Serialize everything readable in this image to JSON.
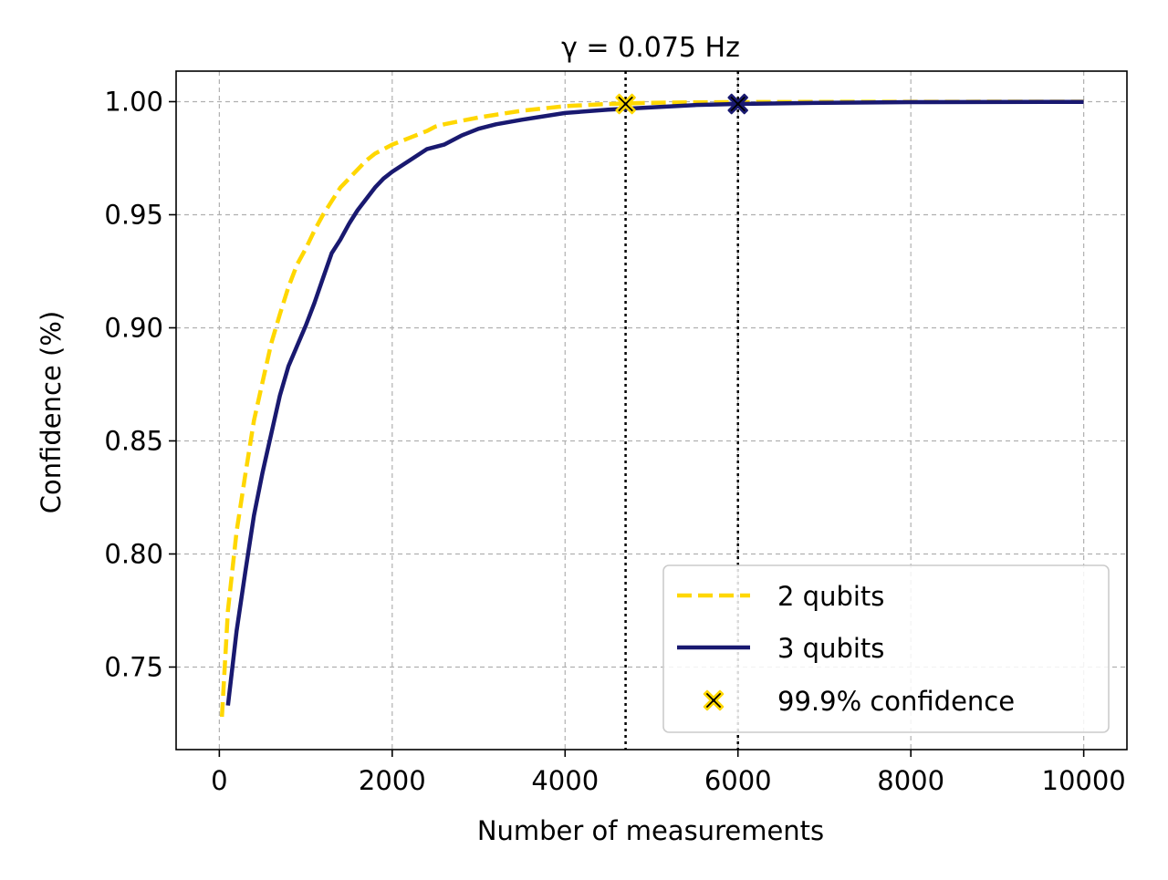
{
  "chart_data": {
    "type": "line",
    "title": "γ = 0.075 Hz",
    "xlabel": "Number of measurements",
    "ylabel": "Confidence (%)",
    "xlim": [
      -500,
      10500
    ],
    "ylim": [
      0.7135,
      1.0135
    ],
    "xticks": [
      0,
      2000,
      4000,
      6000,
      8000,
      10000
    ],
    "xtick_labels": [
      "0",
      "2000",
      "4000",
      "6000",
      "8000",
      "10000"
    ],
    "yticks": [
      0.75,
      0.8,
      0.85,
      0.9,
      0.95,
      1.0
    ],
    "ytick_labels": [
      "0.75",
      "0.80",
      "0.85",
      "0.90",
      "0.95",
      "1.00"
    ],
    "grid": true,
    "legend_position": "lower-right",
    "series": [
      {
        "name": "2 qubits",
        "style": "dashed",
        "color": "#FFD700",
        "x": [
          30,
          100,
          200,
          300,
          400,
          500,
          600,
          700,
          800,
          900,
          1000,
          1100,
          1200,
          1300,
          1400,
          1500,
          1600,
          1700,
          1800,
          1900,
          2000,
          2200,
          2400,
          2500,
          2600,
          3000,
          3500,
          4000,
          4500,
          5000,
          5500,
          6000,
          7000,
          8000,
          10000
        ],
        "y": [
          0.728,
          0.775,
          0.81,
          0.835,
          0.859,
          0.876,
          0.893,
          0.906,
          0.918,
          0.928,
          0.935,
          0.943,
          0.95,
          0.956,
          0.962,
          0.966,
          0.97,
          0.974,
          0.977,
          0.979,
          0.981,
          0.984,
          0.987,
          0.989,
          0.99,
          0.993,
          0.996,
          0.998,
          0.999,
          0.9995,
          0.9997,
          0.9998,
          0.9999,
          0.99995,
          1.0
        ]
      },
      {
        "name": "3 qubits",
        "style": "solid",
        "color": "#191970",
        "x": [
          100,
          200,
          300,
          400,
          500,
          600,
          700,
          800,
          900,
          1000,
          1100,
          1200,
          1300,
          1400,
          1500,
          1600,
          1700,
          1800,
          1900,
          2000,
          2200,
          2400,
          2500,
          2600,
          2800,
          3000,
          3200,
          3500,
          4000,
          4500,
          5000,
          5500,
          6000,
          7000,
          8000,
          10000
        ],
        "y": [
          0.733,
          0.766,
          0.792,
          0.817,
          0.836,
          0.853,
          0.87,
          0.883,
          0.892,
          0.901,
          0.911,
          0.922,
          0.933,
          0.939,
          0.946,
          0.952,
          0.957,
          0.962,
          0.966,
          0.969,
          0.974,
          0.979,
          0.98,
          0.981,
          0.985,
          0.988,
          0.99,
          0.992,
          0.995,
          0.9965,
          0.9975,
          0.9985,
          0.999,
          0.9995,
          0.9998,
          0.9999
        ]
      }
    ],
    "markers": {
      "name": "99.9% confidence",
      "points": [
        {
          "x": 4700,
          "y": 0.999,
          "edge_color": "#FFD700"
        },
        {
          "x": 6000,
          "y": 0.999,
          "edge_color": "#191970"
        }
      ]
    },
    "vlines": [
      4700,
      6000
    ]
  }
}
